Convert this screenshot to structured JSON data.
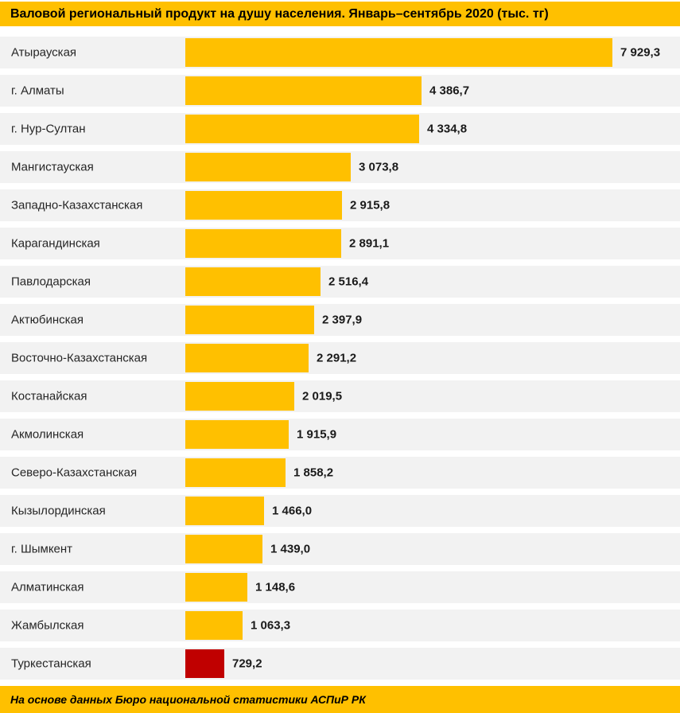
{
  "header": {
    "title": "Валовой региональный продукт на душу населения. Январь–сентябрь 2020 (тыс. тг)"
  },
  "footer": {
    "source": "На основе данных Бюро национальной статистики АСПиР РК"
  },
  "colors": {
    "band_bg": "#FFC000",
    "bar": "#FFC000",
    "bar_highlight": "#C00000",
    "row_bg": "#F2F2F2",
    "title_text": "#000000",
    "value_text": "#1A1A1A",
    "category_text": "#262626"
  },
  "chart_data": {
    "type": "bar",
    "orientation": "horizontal",
    "title": "Валовой региональный продукт на душу населения. Январь–сентябрь 2020 (тыс. тг)",
    "unit": "тыс. тг",
    "categories": [
      "Атырауская",
      "г. Алматы",
      "г. Нур-Султан",
      "Мангистауская",
      "Западно-Казахстанская",
      "Карагандинская",
      "Павлодарская",
      "Актюбинская",
      "Восточно-Казахстанская",
      "Костанайская",
      "Акмолинская",
      "Северо-Казахстанская",
      "Кызылординская",
      "г. Шымкент",
      "Алматинская",
      "Жамбылская",
      "Туркестанская"
    ],
    "values": [
      7929.3,
      4386.7,
      4334.8,
      3073.8,
      2915.8,
      2891.1,
      2516.4,
      2397.9,
      2291.2,
      2019.5,
      1915.9,
      1858.2,
      1466.0,
      1439.0,
      1148.6,
      1063.3,
      729.2
    ],
    "value_labels": [
      "7 929,3",
      "4 386,7",
      "4 334,8",
      "3 073,8",
      "2 915,8",
      "2 891,1",
      "2 516,4",
      "2 397,9",
      "2 291,2",
      "2 019,5",
      "1 915,9",
      "1 858,2",
      "1 466,0",
      "1 439,0",
      "1 148,6",
      "1 063,3",
      "729,2"
    ],
    "xlim": [
      0,
      7929.3
    ],
    "highlight_index": 16,
    "grid": false,
    "legend": "none",
    "source": "На основе данных Бюро национальной статистики АСПиР РК"
  }
}
